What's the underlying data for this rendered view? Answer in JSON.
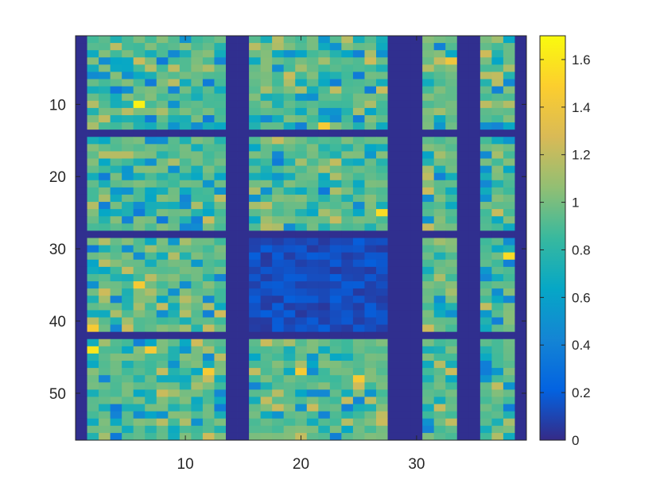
{
  "chart_data": {
    "type": "heatmap",
    "title": "",
    "xlabel": "",
    "ylabel": "",
    "xlim": [
      0.5,
      39.5
    ],
    "ylim": [
      0.5,
      56.5
    ],
    "y_direction": "reversed",
    "n_cols": 39,
    "n_rows": 56,
    "x_ticks": [
      10,
      20,
      30
    ],
    "x_tick_labels": [
      "10",
      "20",
      "30"
    ],
    "y_ticks": [
      10,
      20,
      30,
      40,
      50
    ],
    "y_tick_labels": [
      "10",
      "20",
      "30",
      "40",
      "50"
    ],
    "colormap": "parula",
    "colormap_stops": [
      "#352a87",
      "#0363e1",
      "#1485d4",
      "#06a7c6",
      "#38b99e",
      "#92bf73",
      "#d9ba56",
      "#fcce2e",
      "#f9fb0e"
    ],
    "color_limits": [
      0,
      1.7
    ],
    "colorbar": {
      "position": "right",
      "ticks": [
        0,
        0.2,
        0.4,
        0.6,
        0.8,
        1,
        1.2,
        1.4,
        1.6
      ],
      "tick_labels": [
        "0",
        "0.2",
        "0.4",
        "0.6",
        "0.8",
        "1",
        "1.2",
        "1.4",
        "1.6"
      ]
    },
    "grid": false,
    "background_value": 0.02,
    "block_columns": [
      [
        2,
        13
      ],
      [
        16,
        27
      ],
      [
        31,
        33
      ],
      [
        36,
        38
      ]
    ],
    "block_rows": [
      [
        1,
        13
      ],
      [
        15,
        27
      ],
      [
        29,
        41
      ],
      [
        43,
        56
      ]
    ],
    "typical_block_value": 0.95,
    "block_value_range": [
      0.3,
      1.65
    ],
    "suppressed_block": {
      "columns": [
        16,
        27
      ],
      "rows": [
        29,
        41
      ],
      "value_range": [
        0.05,
        0.2
      ]
    },
    "notable_cells": [
      {
        "x": 6,
        "y": 10,
        "value": 1.65
      },
      {
        "x": 2,
        "y": 44,
        "value": 1.6
      },
      {
        "x": 27,
        "y": 25,
        "value": 1.55
      },
      {
        "x": 38,
        "y": 31,
        "value": 1.55
      },
      {
        "x": 6,
        "y": 35,
        "value": 1.45
      },
      {
        "x": 7,
        "y": 44,
        "value": 1.45
      },
      {
        "x": 12,
        "y": 47,
        "value": 1.45
      },
      {
        "x": 20,
        "y": 47,
        "value": 1.45
      },
      {
        "x": 22,
        "y": 13,
        "value": 1.45
      },
      {
        "x": 33,
        "y": 4,
        "value": 1.4
      },
      {
        "x": 25,
        "y": 48,
        "value": 1.45
      },
      {
        "x": 2,
        "y": 41,
        "value": 1.45
      }
    ]
  }
}
